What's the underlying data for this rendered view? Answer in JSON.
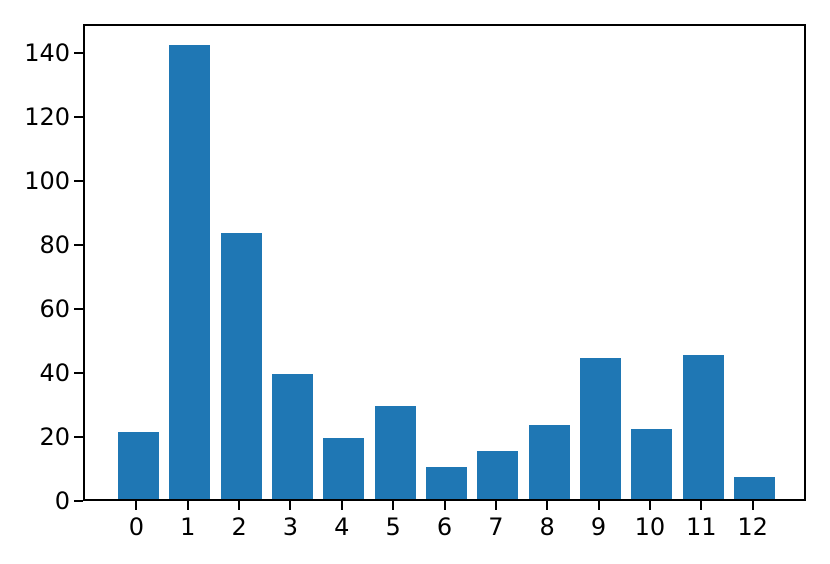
{
  "chart_data": {
    "type": "bar",
    "categories": [
      "0",
      "1",
      "2",
      "3",
      "4",
      "5",
      "6",
      "7",
      "8",
      "9",
      "10",
      "11",
      "12"
    ],
    "values": [
      21,
      142,
      83,
      39,
      19,
      29,
      10,
      15,
      23,
      44,
      22,
      45,
      7
    ],
    "title": "",
    "xlabel": "",
    "ylabel": "",
    "yticks": [
      0,
      20,
      40,
      60,
      80,
      100,
      120,
      140
    ],
    "ytick_labels": [
      "0",
      "20",
      "40",
      "60",
      "80",
      "100",
      "120",
      "140"
    ],
    "xlim": [
      -1.04,
      13.04
    ],
    "ylim": [
      0,
      149.1
    ],
    "bar_width": 0.8,
    "bar_color": "#1f77b4",
    "axis_color": "#000000",
    "background_color": "#ffffff",
    "grid": false,
    "legend": null
  }
}
